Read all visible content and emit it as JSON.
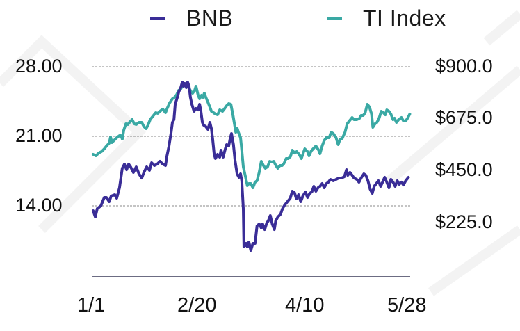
{
  "chart_data": {
    "type": "line",
    "title": "",
    "xlabel": "",
    "ylabel_left": "",
    "ylabel_right": "",
    "legend_position": "top",
    "grid": "horizontal dotted",
    "x_tick_labels": [
      "1/1",
      "2/20",
      "4/10",
      "5/28"
    ],
    "x_range_days": [
      0,
      148
    ],
    "left_axis": {
      "ticks": [
        "28.00",
        "21.00",
        "14.00"
      ],
      "tick_values": [
        28,
        21,
        14
      ],
      "ylim": [
        7,
        28
      ]
    },
    "right_axis": {
      "ticks": [
        "$900.0",
        "$675.0",
        "$450.0",
        "$225.0"
      ],
      "tick_values": [
        900,
        675,
        450,
        225
      ],
      "ylim": [
        0,
        900
      ]
    },
    "series": [
      {
        "name": "BNB",
        "axis": "left",
        "color": "#3a2d97",
        "points": [
          [
            0,
            13.51
          ],
          [
            1,
            12.88
          ],
          [
            1.9,
            13.72
          ],
          [
            3.6,
            14.0
          ],
          [
            5.2,
            14.84
          ],
          [
            6.2,
            14.84
          ],
          [
            7.5,
            14.42
          ],
          [
            8.4,
            14.98
          ],
          [
            10.1,
            15.12
          ],
          [
            11,
            14.77
          ],
          [
            12.3,
            15.82
          ],
          [
            13.6,
            17.78
          ],
          [
            14.6,
            18.2
          ],
          [
            15.6,
            17.64
          ],
          [
            16.6,
            18.2
          ],
          [
            17.5,
            17.92
          ],
          [
            18.8,
            17.36
          ],
          [
            20.1,
            17.92
          ],
          [
            21.4,
            17.22
          ],
          [
            22.7,
            16.8
          ],
          [
            23.7,
            17.36
          ],
          [
            25,
            17.92
          ],
          [
            26.3,
            17.57
          ],
          [
            27.3,
            18.34
          ],
          [
            28.6,
            18.06
          ],
          [
            29.9,
            18.2
          ],
          [
            31.2,
            18.48
          ],
          [
            32.5,
            18.2
          ],
          [
            33.8,
            18.06
          ],
          [
            34.4,
            18.97
          ],
          [
            35.4,
            20.02
          ],
          [
            36.4,
            21.42
          ],
          [
            37.0,
            22.4
          ],
          [
            37.7,
            22.68
          ],
          [
            38.3,
            24.22
          ],
          [
            39.3,
            24.92
          ],
          [
            40.0,
            25.48
          ],
          [
            40.9,
            25.9
          ],
          [
            41.6,
            26.46
          ],
          [
            42.2,
            26.04
          ],
          [
            42.8,
            26.32
          ],
          [
            43.5,
            25.9
          ],
          [
            44.1,
            26.46
          ],
          [
            44.8,
            26.04
          ],
          [
            45.4,
            24.92
          ],
          [
            46.1,
            24.22
          ],
          [
            47.1,
            23.52
          ],
          [
            48.0,
            23.8
          ],
          [
            49.0,
            23.66
          ],
          [
            49.7,
            24.22
          ],
          [
            50.3,
            23.52
          ],
          [
            51.0,
            22.4
          ],
          [
            51.6,
            22.12
          ],
          [
            52.6,
            21.98
          ],
          [
            53.6,
            21.7
          ],
          [
            54.5,
            22.4
          ],
          [
            55.2,
            21.77
          ],
          [
            55.8,
            20.72
          ],
          [
            56.5,
            19.18
          ],
          [
            57.1,
            18.76
          ],
          [
            58.1,
            19.18
          ],
          [
            59.1,
            18.9
          ],
          [
            59.7,
            19.6
          ],
          [
            60.7,
            18.9
          ],
          [
            61.7,
            19.74
          ],
          [
            62.3,
            20.16
          ],
          [
            63.3,
            20.02
          ],
          [
            63.9,
            20.72
          ],
          [
            64.6,
            21.28
          ],
          [
            65.5,
            20.16
          ],
          [
            66.2,
            18.62
          ],
          [
            67.2,
            17.22
          ],
          [
            68.1,
            16.87
          ],
          [
            68.8,
            17.22
          ],
          [
            69.4,
            16.52
          ],
          [
            70.1,
            13.72
          ],
          [
            70.4,
            9.87
          ],
          [
            71.4,
            10.22
          ],
          [
            72.0,
            9.87
          ],
          [
            72.7,
            10.36
          ],
          [
            73.6,
            9.52
          ],
          [
            74.6,
            10.22
          ],
          [
            75.6,
            10.22
          ],
          [
            76.5,
            11.97
          ],
          [
            77.5,
            12.18
          ],
          [
            78.5,
            11.76
          ],
          [
            79.1,
            12.18
          ],
          [
            80.1,
            11.62
          ],
          [
            81.1,
            12.32
          ],
          [
            81.7,
            12.46
          ],
          [
            82.7,
            13.02
          ],
          [
            83.6,
            12.18
          ],
          [
            84.6,
            11.62
          ],
          [
            85.2,
            12.46
          ],
          [
            86.2,
            12.88
          ],
          [
            87.5,
            13.16
          ],
          [
            88.4,
            13.72
          ],
          [
            89.4,
            14.07
          ],
          [
            90.7,
            14.42
          ],
          [
            92.0,
            14.77
          ],
          [
            93.0,
            15.47
          ],
          [
            94.0,
            15.33
          ],
          [
            94.9,
            14.7
          ],
          [
            95.9,
            15.12
          ],
          [
            96.9,
            14.42
          ],
          [
            97.9,
            14.98
          ],
          [
            99.1,
            15.4
          ],
          [
            100.1,
            14.84
          ],
          [
            101.1,
            15.26
          ],
          [
            102.1,
            15.4
          ],
          [
            103.0,
            15.96
          ],
          [
            104.0,
            15.47
          ],
          [
            105.0,
            15.82
          ],
          [
            105.9,
            15.96
          ],
          [
            106.9,
            16.24
          ],
          [
            107.9,
            15.82
          ],
          [
            108.9,
            16.24
          ],
          [
            109.8,
            16.38
          ],
          [
            110.8,
            16.66
          ],
          [
            112.1,
            16.52
          ],
          [
            113.4,
            16.66
          ],
          [
            114.7,
            16.8
          ],
          [
            116.0,
            16.8
          ],
          [
            117.3,
            16.94
          ],
          [
            118.3,
            17.64
          ],
          [
            118.9,
            17.08
          ],
          [
            119.9,
            17.36
          ],
          [
            120.9,
            17.08
          ],
          [
            121.8,
            16.8
          ],
          [
            123.1,
            16.66
          ],
          [
            124.1,
            16.38
          ],
          [
            125.1,
            16.8
          ],
          [
            126.4,
            17.22
          ],
          [
            127.3,
            17.08
          ],
          [
            128.3,
            16.52
          ],
          [
            129.3,
            15.68
          ],
          [
            130.3,
            15.26
          ],
          [
            131.2,
            15.96
          ],
          [
            132.2,
            16.24
          ],
          [
            133.2,
            16.52
          ],
          [
            134.2,
            15.96
          ],
          [
            135.1,
            16.38
          ],
          [
            136.1,
            16.87
          ],
          [
            137.1,
            16.38
          ],
          [
            138.1,
            15.82
          ],
          [
            139.0,
            16.66
          ],
          [
            140.0,
            16.38
          ],
          [
            141.0,
            15.96
          ],
          [
            142.0,
            16.52
          ],
          [
            142.9,
            16.17
          ],
          [
            143.9,
            16.38
          ],
          [
            144.9,
            16.1
          ],
          [
            145.9,
            16.52
          ],
          [
            147.2,
            16.87
          ]
        ]
      },
      {
        "name": "TI Index",
        "axis": "right",
        "color": "#3aa9a4",
        "points": [
          [
            0,
            522
          ],
          [
            1.3,
            516
          ],
          [
            2.6,
            528
          ],
          [
            3.9,
            534
          ],
          [
            5.2,
            546
          ],
          [
            6.5,
            561
          ],
          [
            7.5,
            570
          ],
          [
            8.1,
            597
          ],
          [
            8.8,
            573
          ],
          [
            9.7,
            582
          ],
          [
            11,
            594
          ],
          [
            12.3,
            603
          ],
          [
            13,
            603
          ],
          [
            13.6,
            588
          ],
          [
            14.3,
            627
          ],
          [
            15.3,
            654
          ],
          [
            16.2,
            651
          ],
          [
            17.2,
            663
          ],
          [
            18.2,
            672
          ],
          [
            19.2,
            654
          ],
          [
            20.1,
            651
          ],
          [
            21.4,
            660
          ],
          [
            22.7,
            660
          ],
          [
            23.7,
            642
          ],
          [
            24.7,
            633
          ],
          [
            25.6,
            648
          ],
          [
            26.6,
            672
          ],
          [
            27.9,
            687
          ],
          [
            29.2,
            702
          ],
          [
            30.2,
            699
          ],
          [
            31.2,
            708
          ],
          [
            32.5,
            717
          ],
          [
            33.8,
            702
          ],
          [
            34.4,
            717
          ],
          [
            35.7,
            744
          ],
          [
            37.0,
            762
          ],
          [
            38.0,
            768
          ],
          [
            39.0,
            780
          ],
          [
            39.9,
            798
          ],
          [
            40.9,
            804
          ],
          [
            41.9,
            822
          ],
          [
            42.8,
            822
          ],
          [
            44.1,
            828
          ],
          [
            44.8,
            807
          ],
          [
            45.8,
            792
          ],
          [
            46.4,
            786
          ],
          [
            47.4,
            798
          ],
          [
            48.0,
            816
          ],
          [
            49.0,
            777
          ],
          [
            49.7,
            762
          ],
          [
            50.6,
            777
          ],
          [
            51.3,
            768
          ],
          [
            51.9,
            786
          ],
          [
            52.6,
            768
          ],
          [
            53.6,
            747
          ],
          [
            54.5,
            726
          ],
          [
            55.2,
            708
          ],
          [
            56.2,
            702
          ],
          [
            57.1,
            696
          ],
          [
            58.1,
            693
          ],
          [
            59.1,
            714
          ],
          [
            60.4,
            708
          ],
          [
            61.4,
            720
          ],
          [
            62.3,
            732
          ],
          [
            63.3,
            741
          ],
          [
            64.3,
            738
          ],
          [
            65.3,
            690
          ],
          [
            66.6,
            618
          ],
          [
            67.2,
            636
          ],
          [
            67.8,
            618
          ],
          [
            68.8,
            594
          ],
          [
            69.4,
            540
          ],
          [
            70.1,
            468
          ],
          [
            71.1,
            426
          ],
          [
            72.0,
            387
          ],
          [
            72.7,
            396
          ],
          [
            73.6,
            396
          ],
          [
            74.6,
            378
          ],
          [
            75.6,
            402
          ],
          [
            76.5,
            408
          ],
          [
            77.5,
            444
          ],
          [
            78.5,
            492
          ],
          [
            79.5,
            474
          ],
          [
            80.4,
            462
          ],
          [
            81.4,
            468
          ],
          [
            82.4,
            492
          ],
          [
            83.3,
            489
          ],
          [
            84.3,
            492
          ],
          [
            85.3,
            474
          ],
          [
            86.2,
            462
          ],
          [
            87.2,
            474
          ],
          [
            88.2,
            474
          ],
          [
            89.1,
            483
          ],
          [
            90.1,
            504
          ],
          [
            91.1,
            504
          ],
          [
            92.1,
            513
          ],
          [
            93.0,
            540
          ],
          [
            94.0,
            528
          ],
          [
            95.0,
            534
          ],
          [
            96.2,
            522
          ],
          [
            97.2,
            504
          ],
          [
            97.9,
            522
          ],
          [
            98.8,
            546
          ],
          [
            100.1,
            534
          ],
          [
            100.8,
            516
          ],
          [
            101.8,
            537
          ],
          [
            103.0,
            549
          ],
          [
            104.0,
            558
          ],
          [
            105.3,
            540
          ],
          [
            105.9,
            525
          ],
          [
            106.9,
            558
          ],
          [
            107.9,
            582
          ],
          [
            108.9,
            594
          ],
          [
            110.2,
            594
          ],
          [
            111.1,
            618
          ],
          [
            112.1,
            612
          ],
          [
            113.4,
            594
          ],
          [
            114.4,
            564
          ],
          [
            115.3,
            588
          ],
          [
            116.3,
            591
          ],
          [
            117.6,
            618
          ],
          [
            118.6,
            654
          ],
          [
            119.6,
            666
          ],
          [
            120.9,
            681
          ],
          [
            121.8,
            672
          ],
          [
            123.1,
            672
          ],
          [
            124.4,
            678
          ],
          [
            125.1,
            690
          ],
          [
            126.1,
            690
          ],
          [
            127.0,
            702
          ],
          [
            128.0,
            738
          ],
          [
            129.0,
            726
          ],
          [
            130.0,
            696
          ],
          [
            130.6,
            639
          ],
          [
            131.6,
            654
          ],
          [
            132.5,
            660
          ],
          [
            133.5,
            678
          ],
          [
            134.5,
            708
          ],
          [
            135.5,
            702
          ],
          [
            136.4,
            693
          ],
          [
            137.1,
            714
          ],
          [
            138.1,
            708
          ],
          [
            139.0,
            696
          ],
          [
            140.0,
            672
          ],
          [
            140.7,
            678
          ],
          [
            141.6,
            660
          ],
          [
            142.6,
            672
          ],
          [
            143.9,
            681
          ],
          [
            144.9,
            666
          ],
          [
            145.9,
            666
          ],
          [
            146.8,
            678
          ],
          [
            147.8,
            696
          ]
        ]
      }
    ]
  },
  "legend": {
    "items": [
      {
        "label": "BNB",
        "color": "#3a2d97"
      },
      {
        "label": "TI Index",
        "color": "#3aa9a4"
      }
    ]
  },
  "axes": {
    "left_ticks": [
      "28.00",
      "21.00",
      "14.00"
    ],
    "right_ticks": [
      "$900.0",
      "$675.0",
      "$450.0",
      "$225.0"
    ],
    "x_ticks": [
      "1/1",
      "2/20",
      "4/10",
      "5/28"
    ]
  }
}
